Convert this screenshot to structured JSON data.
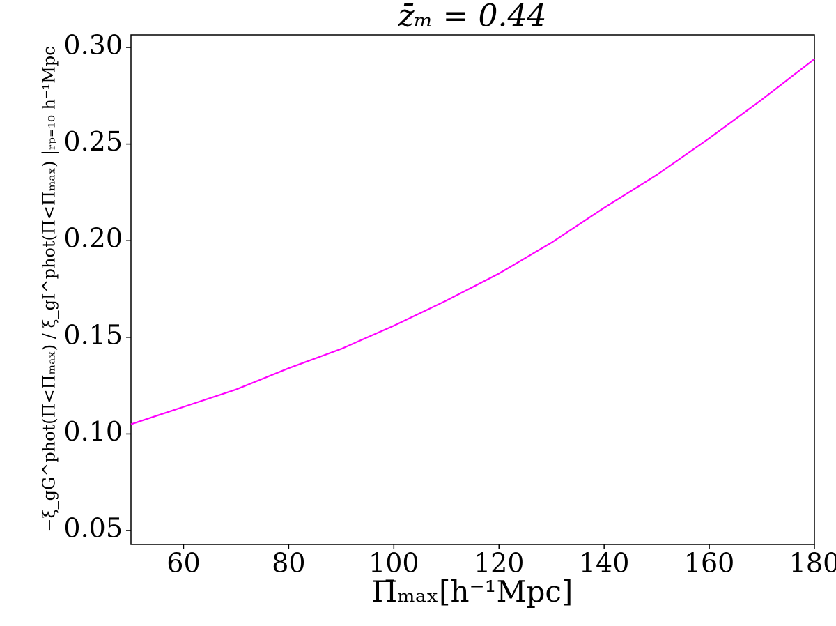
{
  "chart_data": {
    "type": "line",
    "title": "z̄ₘ = 0.44",
    "x_label": "Π̄ₘₐₓ[h⁻¹Mpc]",
    "y_label": "−ξ_gG^phot(Π̄<Π̄ₘₐₓ) / ξ_gI^phot(Π̄<Π̄ₘₐₓ) |ᵣₚ₌₁₀ h⁻¹Mpc",
    "x": [
      50,
      60,
      70,
      80,
      90,
      100,
      110,
      120,
      130,
      140,
      150,
      160,
      170,
      180
    ],
    "series": [
      {
        "color": "#ff00ff",
        "values": [
          0.105,
          0.114,
          0.123,
          0.134,
          0.144,
          0.156,
          0.169,
          0.183,
          0.199,
          0.217,
          0.234,
          0.253,
          0.273,
          0.294
        ]
      }
    ],
    "xlim": [
      50,
      180
    ],
    "xticks": [
      60,
      80,
      100,
      120,
      140,
      160,
      180
    ],
    "ylim": [
      0.0428,
      0.3065
    ],
    "yticks": [
      0.05,
      {
        "value": 0.1,
        "label": "0.10"
      },
      0.15,
      {
        "value": 0.2,
        "label": "0.20"
      },
      0.25,
      {
        "value": 0.3,
        "label": "0.30"
      }
    ],
    "grid": false
  }
}
